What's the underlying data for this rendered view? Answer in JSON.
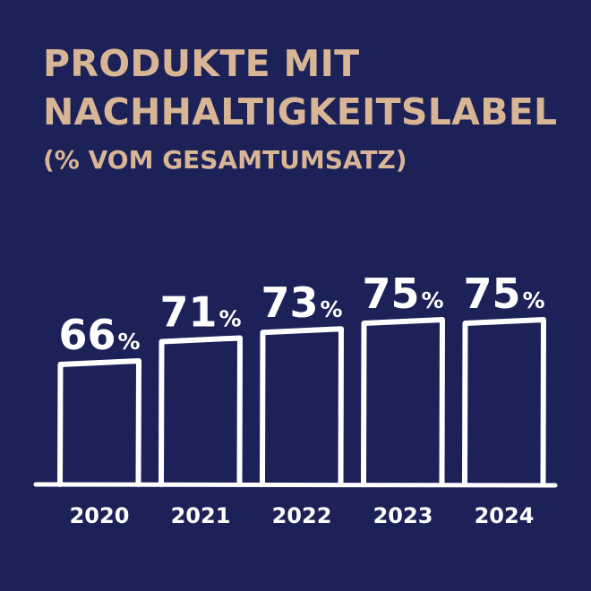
{
  "colors": {
    "background": "#1c2258",
    "title": "#d8b595",
    "bars": "#ffffff"
  },
  "chart_data": {
    "type": "bar",
    "title_lines": [
      "PRODUKTE MIT",
      "NACHHALTIGKEITSLABEL"
    ],
    "subtitle": "(% VOM GESAMTUMSATZ)",
    "categories": [
      "2020",
      "2021",
      "2022",
      "2023",
      "2024"
    ],
    "values": [
      66,
      71,
      73,
      75,
      75
    ],
    "value_suffix": "%",
    "grid": false,
    "legend": "none"
  }
}
